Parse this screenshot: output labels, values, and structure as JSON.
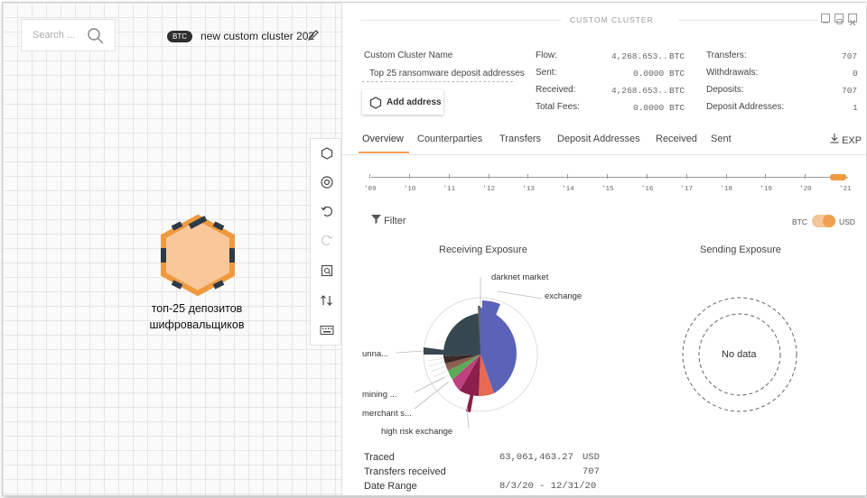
{
  "canvas": {
    "search_placeholder": "Search ...",
    "currency_badge": "BTC",
    "cluster_title": "new custom cluster 202",
    "node_label_line1": "топ-25 депозитов",
    "node_label_line2": "шифровальщиков"
  },
  "panel": {
    "title": "CUSTOM CLUSTER",
    "name_label": "Custom Cluster Name",
    "name_value": "Top 25 ransomware deposit addresses",
    "add_address_label": "Add address",
    "stats": {
      "flow_label": "Flow:",
      "flow_value": "4,268.653...",
      "flow_unit": "BTC",
      "sent_label": "Sent:",
      "sent_value": "0.0000",
      "sent_unit": "BTC",
      "received_label": "Received:",
      "received_value": "4,268.653...",
      "received_unit": "BTC",
      "fees_label": "Total Fees:",
      "fees_value": "0.0000",
      "fees_unit": "BTC",
      "transfers_label": "Transfers:",
      "transfers_value": "707",
      "withdrawals_label": "Withdrawals:",
      "withdrawals_value": "0",
      "deposits_label": "Deposits:",
      "deposits_value": "707",
      "deposit_addresses_label": "Deposit Addresses:",
      "deposit_addresses_value": "1"
    },
    "tabs": [
      "Overview",
      "Counterparties",
      "Transfers",
      "Deposit Addresses",
      "Received",
      "Sent"
    ],
    "export_label": "EXP",
    "timeline_ticks": [
      "'09",
      "'10",
      "'11",
      "'12",
      "'13",
      "'14",
      "'15",
      "'16",
      "'17",
      "'18",
      "'19",
      "'20",
      "'21"
    ],
    "filter_label": "Filter",
    "toggle_left": "BTC",
    "toggle_right": "USD",
    "receiving_title": "Receiving Exposure",
    "sending_title": "Sending Exposure",
    "no_data": "No data",
    "pie_labels": {
      "darknet": "darknet market",
      "exchange": "exchange",
      "unnamed": "unna...",
      "mining": "mining ...",
      "merchant": "merchant s...",
      "high_risk": "high risk exchange"
    },
    "summary": {
      "traced_label": "Traced",
      "traced_value": "63,061,463.27",
      "traced_unit": "USD",
      "transfers_received_label": "Transfers received",
      "transfers_received_value": "707",
      "date_range_label": "Date Range",
      "date_range_value": "8/3/20 - 12/31/20"
    }
  },
  "colors": {
    "accent": "#f0a050",
    "exchange": "#5b63b8",
    "unnamed": "#37474f",
    "high_risk": "#8b1e4a"
  }
}
